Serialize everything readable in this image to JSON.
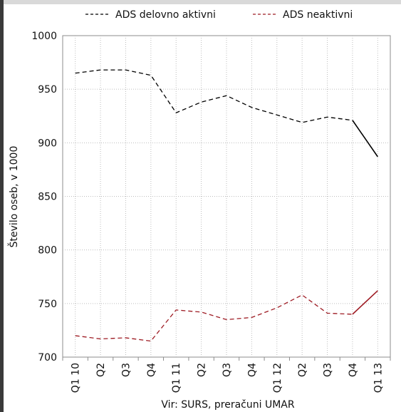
{
  "chart_data": {
    "type": "line",
    "title": "",
    "ylabel": "Število oseb, v 1000",
    "xlabel": "",
    "source_note": "Vir: SURS, preračuni UMAR",
    "ylim": [
      700,
      1000
    ],
    "yticks": [
      "700",
      "750",
      "800",
      "850",
      "900",
      "950",
      "1000"
    ],
    "categories": [
      "Q1 10",
      "Q2",
      "Q3",
      "Q4",
      "Q1 11",
      "Q2",
      "Q3",
      "Q4",
      "Q1 12",
      "Q2",
      "Q3",
      "Q4",
      "Q1 13"
    ],
    "grid": true,
    "legend_position": "top",
    "series": [
      {
        "name": "ADS delovno aktivni",
        "color": "#000000",
        "values": [
          965,
          968,
          968,
          963,
          928,
          938,
          944,
          933,
          926,
          919,
          924,
          921,
          887
        ]
      },
      {
        "name": "ADS neaktivni",
        "color": "#9e1c24",
        "values": [
          720,
          717,
          718,
          715,
          744,
          742,
          735,
          737,
          746,
          758,
          741,
          740,
          762
        ]
      }
    ]
  }
}
